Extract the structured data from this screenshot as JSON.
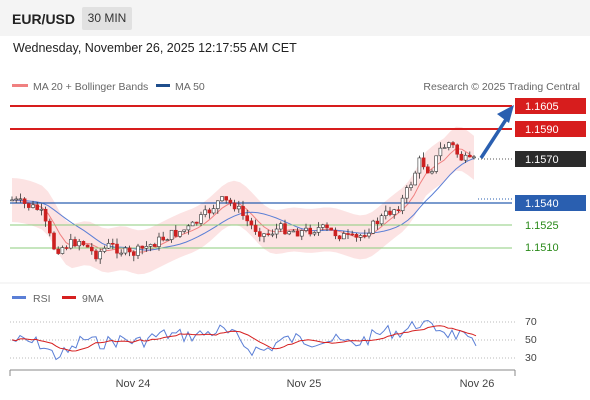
{
  "header": {
    "symbol": "EUR/USD",
    "timeframe": "30 MIN"
  },
  "datetime": "Wednesday, November 26, 2025 12:17:55 AM CET",
  "legend": {
    "ma20_label": "MA 20 + Bollinger Bands",
    "ma50_label": "MA 50",
    "credit": "Research © 2025 Trading Central",
    "ma20_color": "#f08080",
    "ma50_color": "#1f4e8c"
  },
  "levels": {
    "r2": "1.1605",
    "r1": "1.1590",
    "current": "1.1570",
    "s1": "1.1540",
    "s2": "1.1525",
    "s3": "1.1510"
  },
  "x_axis": {
    "labels": [
      "Nov 24",
      "Nov 25",
      "Nov 26"
    ]
  },
  "rsi": {
    "rsi_label": "RSI",
    "ma_label": "9MA",
    "rsi_color": "#5b7fd6",
    "ma_color": "#d62020",
    "axis": [
      "70",
      "50",
      "30"
    ]
  },
  "colors": {
    "resistance": "#d71d1d",
    "support": "#2a5fb0",
    "green_line": "#6abf5a",
    "up": "#ffffff",
    "down": "#cc2020"
  }
}
